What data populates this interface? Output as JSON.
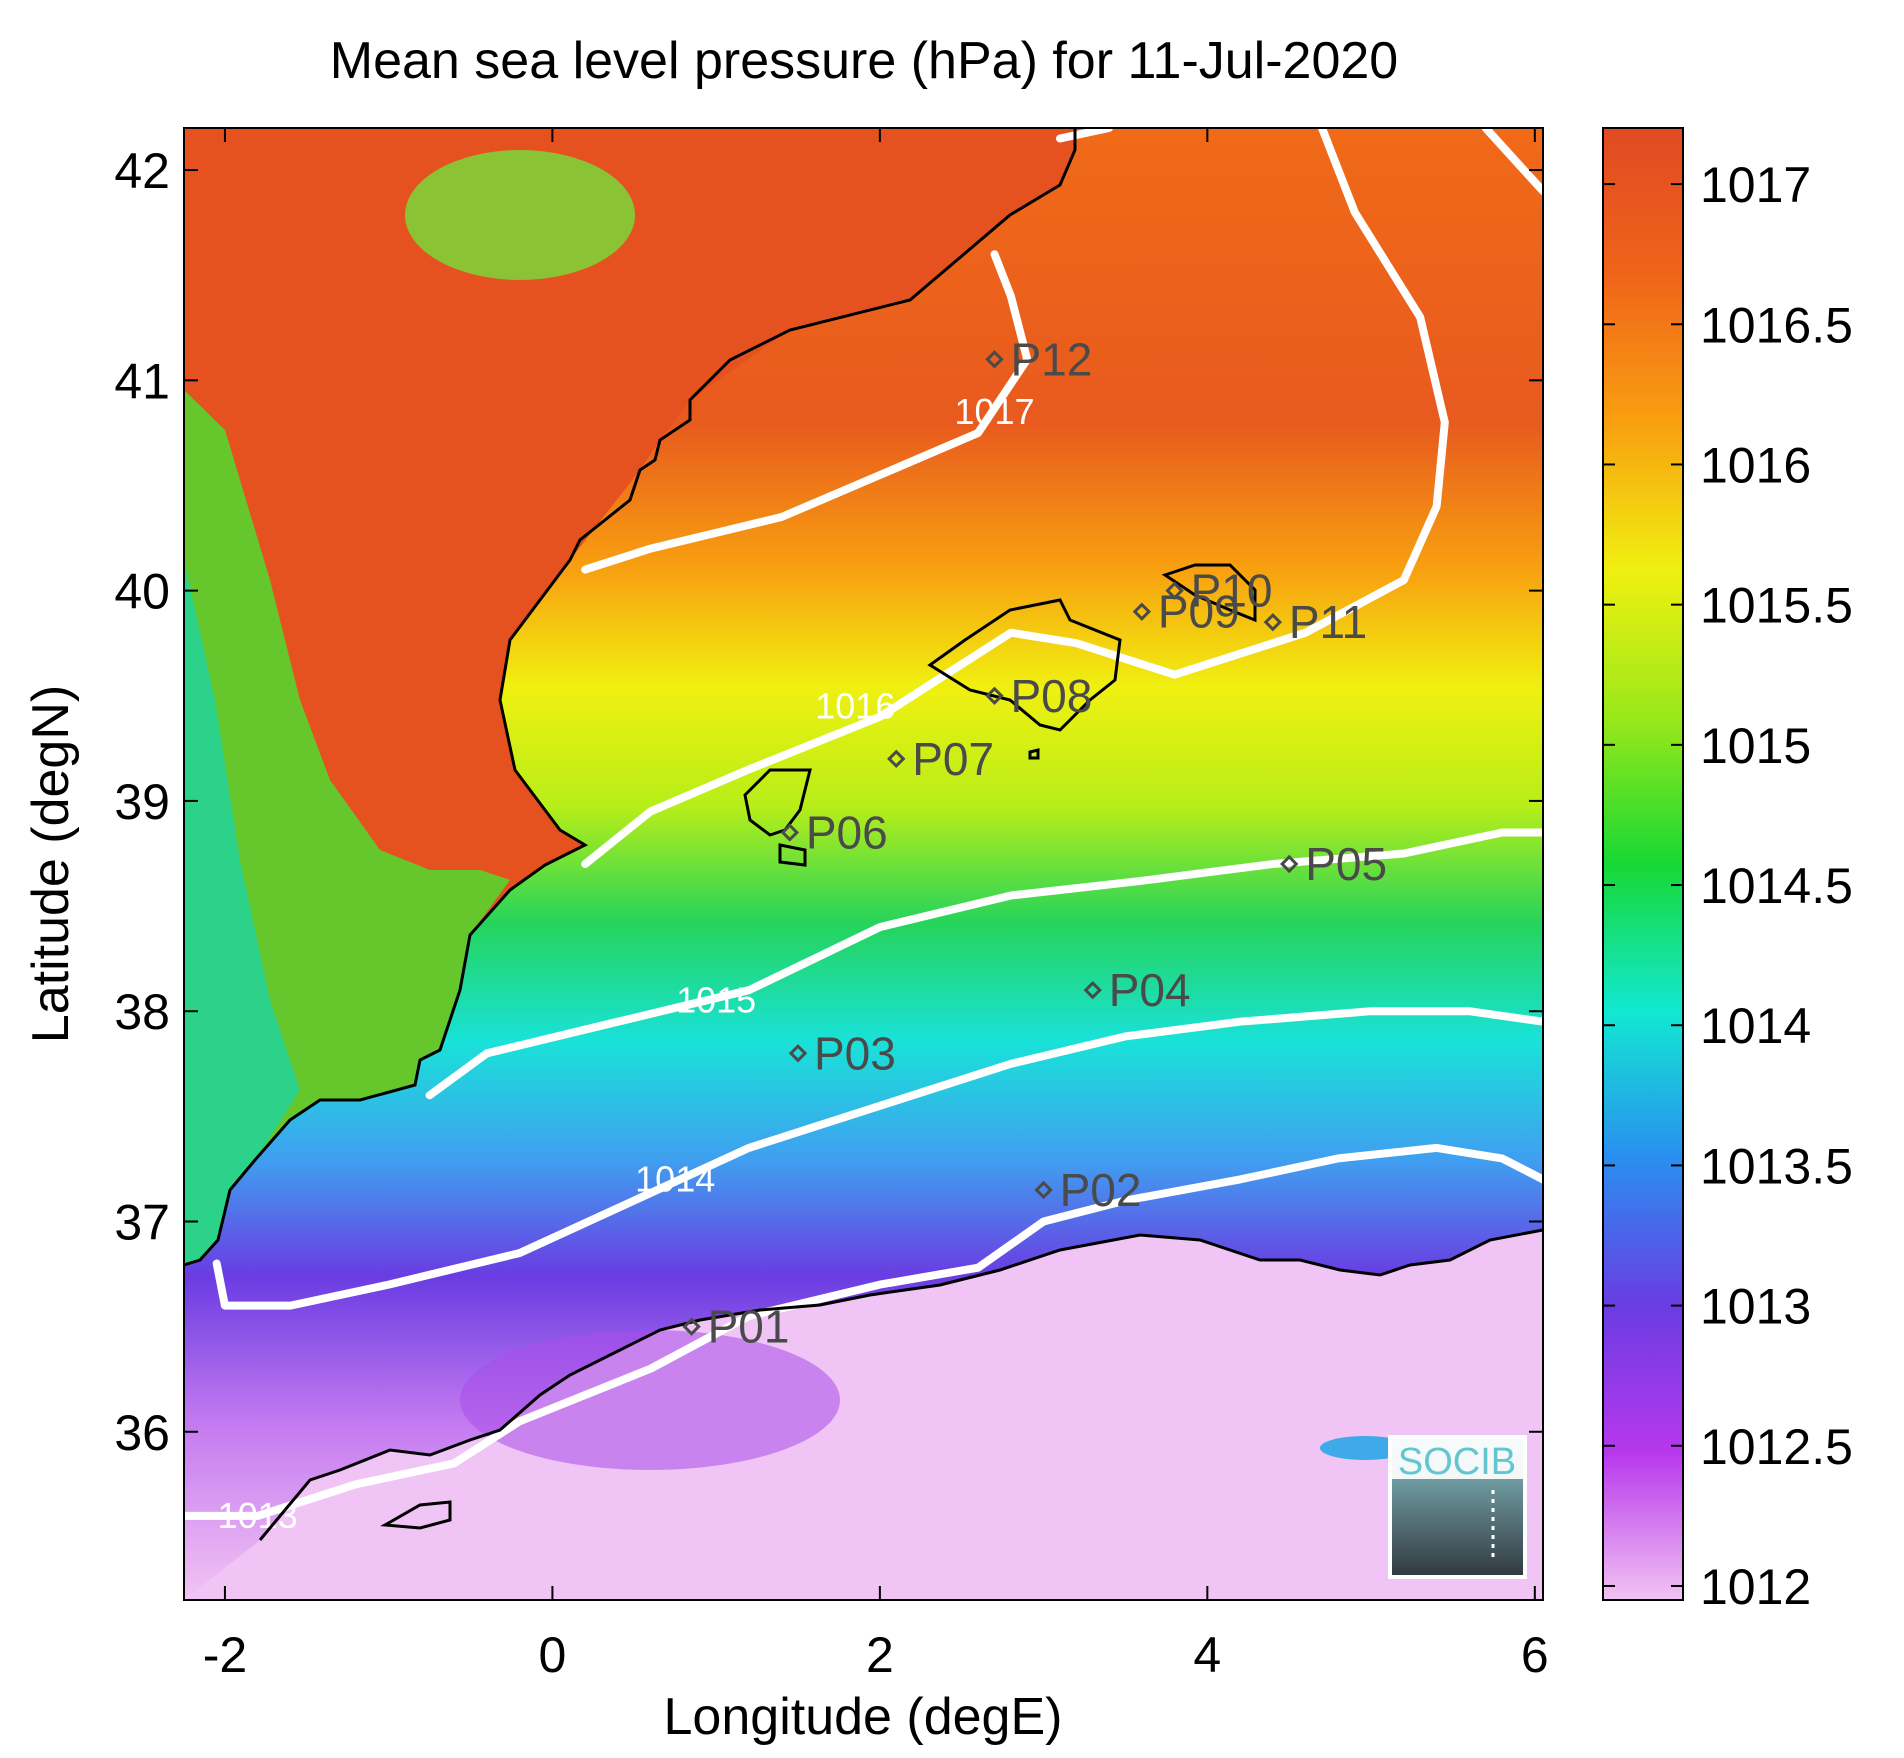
{
  "chart_data": {
    "type": "heatmap",
    "title": "Mean sea level pressure (hPa) for 11-Jul-2020",
    "xlabel": "Longitude (degE)",
    "ylabel": "Latitude (degN)",
    "xlim": [
      -2.25,
      6.05
    ],
    "ylim": [
      35.2,
      42.2
    ],
    "xticks": [
      -2,
      0,
      2,
      4,
      6
    ],
    "yticks": [
      36,
      37,
      38,
      39,
      40,
      41,
      42
    ],
    "colorbar": {
      "range": [
        1011.95,
        1017.2
      ],
      "ticks": [
        1012,
        1012.5,
        1013,
        1013.5,
        1014,
        1014.5,
        1015,
        1015.5,
        1016,
        1016.5,
        1017
      ],
      "colors": [
        "#f2c3f3",
        "#b838ec",
        "#6a3ce2",
        "#1ea8f0",
        "#12e8d2",
        "#25d45a",
        "#9ae81a",
        "#f0f010",
        "#f8a010",
        "#e04a22"
      ]
    },
    "contour_lines": [
      {
        "level": "1013",
        "points": [
          [
            -2.25,
            35.6
          ],
          [
            -1.8,
            35.6
          ],
          [
            -1.2,
            35.75
          ],
          [
            -0.6,
            35.85
          ],
          [
            -0.2,
            36.05
          ],
          [
            0.6,
            36.3
          ],
          [
            1.2,
            36.55
          ],
          [
            2.0,
            36.7
          ],
          [
            2.6,
            36.78
          ],
          [
            3.0,
            37.0
          ],
          [
            3.5,
            37.1
          ],
          [
            4.2,
            37.2
          ],
          [
            4.8,
            37.3
          ],
          [
            5.4,
            37.35
          ],
          [
            5.8,
            37.3
          ],
          [
            6.05,
            37.2
          ]
        ],
        "label": [
          -1.8,
          35.6
        ]
      },
      {
        "level": "1014",
        "points": [
          [
            -2.05,
            36.8
          ],
          [
            -2.0,
            36.6
          ],
          [
            -1.6,
            36.6
          ],
          [
            -1.0,
            36.7
          ],
          [
            -0.2,
            36.85
          ],
          [
            0.5,
            37.1
          ],
          [
            1.2,
            37.35
          ],
          [
            2.0,
            37.55
          ],
          [
            2.8,
            37.75
          ],
          [
            3.5,
            37.88
          ],
          [
            4.2,
            37.95
          ],
          [
            5.0,
            38.0
          ],
          [
            5.6,
            38.0
          ],
          [
            6.05,
            37.95
          ]
        ],
        "label": [
          0.75,
          37.2
        ]
      },
      {
        "level": "1015",
        "points": [
          [
            -0.75,
            37.6
          ],
          [
            -0.4,
            37.8
          ],
          [
            0.4,
            37.95
          ],
          [
            1.2,
            38.1
          ],
          [
            2.0,
            38.4
          ],
          [
            2.8,
            38.55
          ],
          [
            3.6,
            38.62
          ],
          [
            4.4,
            38.7
          ],
          [
            5.2,
            38.75
          ],
          [
            5.8,
            38.85
          ],
          [
            6.05,
            38.85
          ]
        ],
        "label": [
          1.0,
          38.05
        ]
      },
      {
        "level": "1016",
        "points": [
          [
            0.2,
            38.7
          ],
          [
            0.6,
            38.95
          ],
          [
            1.2,
            39.15
          ],
          [
            2.0,
            39.4
          ],
          [
            2.4,
            39.6
          ],
          [
            2.8,
            39.8
          ],
          [
            3.2,
            39.75
          ],
          [
            3.8,
            39.6
          ],
          [
            4.6,
            39.8
          ],
          [
            5.2,
            40.05
          ],
          [
            5.4,
            40.4
          ],
          [
            5.45,
            40.8
          ],
          [
            5.3,
            41.3
          ],
          [
            4.9,
            41.8
          ],
          [
            4.7,
            42.2
          ]
        ],
        "label": [
          1.85,
          39.45
        ]
      },
      {
        "level": "1016",
        "points": [
          [
            5.7,
            42.2
          ],
          [
            6.05,
            41.9
          ]
        ],
        "label": null
      },
      {
        "level": "1017",
        "points": [
          [
            0.2,
            40.1
          ],
          [
            0.6,
            40.2
          ],
          [
            1.4,
            40.35
          ],
          [
            2.0,
            40.55
          ],
          [
            2.6,
            40.75
          ],
          [
            2.9,
            41.1
          ],
          [
            2.8,
            41.4
          ],
          [
            2.7,
            41.6
          ]
        ],
        "label": [
          2.7,
          40.85
        ]
      },
      {
        "level": "1017",
        "points": [
          [
            3.1,
            42.15
          ],
          [
            3.4,
            42.2
          ]
        ],
        "label": null
      }
    ],
    "stations": [
      {
        "name": "P01",
        "lon": 0.85,
        "lat": 36.5
      },
      {
        "name": "P02",
        "lon": 3.0,
        "lat": 37.15
      },
      {
        "name": "P03",
        "lon": 1.5,
        "lat": 37.8
      },
      {
        "name": "P04",
        "lon": 3.3,
        "lat": 38.1
      },
      {
        "name": "P05",
        "lon": 4.5,
        "lat": 38.7
      },
      {
        "name": "P06",
        "lon": 1.45,
        "lat": 38.85
      },
      {
        "name": "P07",
        "lon": 2.1,
        "lat": 39.2
      },
      {
        "name": "P08",
        "lon": 2.7,
        "lat": 39.5
      },
      {
        "name": "P09",
        "lon": 3.6,
        "lat": 39.9
      },
      {
        "name": "P10",
        "lon": 3.8,
        "lat": 40.0
      },
      {
        "name": "P11",
        "lon": 4.4,
        "lat": 39.85
      },
      {
        "name": "P12",
        "lon": 2.7,
        "lat": 41.1
      }
    ]
  },
  "logo": {
    "text": "SOCIB"
  }
}
